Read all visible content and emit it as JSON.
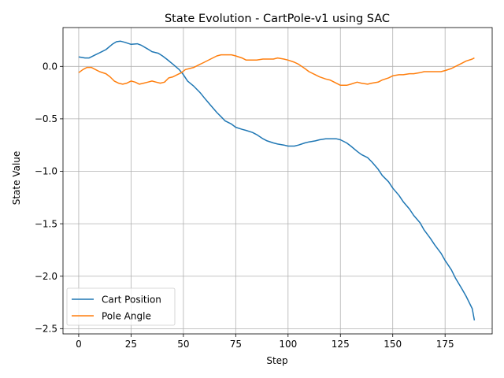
{
  "chart_data": {
    "type": "line",
    "title": "State Evolution - CartPole-v1 using SAC",
    "xlabel": "Step",
    "ylabel": "State Value",
    "xlim": [
      -7.5,
      197.5
    ],
    "ylim": [
      -2.55,
      0.37
    ],
    "xticks": [
      0,
      25,
      50,
      75,
      100,
      125,
      150,
      175
    ],
    "yticks": [
      -2.5,
      -2.0,
      -1.5,
      -1.0,
      -0.5,
      0.0
    ],
    "grid": true,
    "legend": "lower-left",
    "series": [
      {
        "name": "Cart Position",
        "color": "#1f77b4",
        "x": [
          0,
          3,
          5,
          8,
          10,
          13,
          16,
          18,
          20,
          22,
          25,
          28,
          30,
          33,
          35,
          38,
          40,
          42,
          45,
          48,
          50,
          52,
          55,
          58,
          60,
          63,
          66,
          68,
          70,
          73,
          75,
          78,
          80,
          83,
          85,
          88,
          90,
          93,
          95,
          98,
          100,
          103,
          105,
          108,
          110,
          113,
          115,
          118,
          120,
          123,
          125,
          128,
          130,
          133,
          135,
          138,
          140,
          143,
          145,
          148,
          150,
          153,
          155,
          158,
          160,
          163,
          165,
          168,
          170,
          173,
          175,
          178,
          180,
          183,
          185,
          188,
          189
        ],
        "values": [
          0.09,
          0.08,
          0.08,
          0.11,
          0.13,
          0.16,
          0.21,
          0.235,
          0.24,
          0.23,
          0.21,
          0.215,
          0.2,
          0.165,
          0.14,
          0.125,
          0.1,
          0.07,
          0.02,
          -0.03,
          -0.08,
          -0.14,
          -0.19,
          -0.25,
          -0.3,
          -0.37,
          -0.44,
          -0.48,
          -0.52,
          -0.55,
          -0.58,
          -0.6,
          -0.61,
          -0.63,
          -0.65,
          -0.69,
          -0.71,
          -0.73,
          -0.74,
          -0.75,
          -0.76,
          -0.76,
          -0.75,
          -0.73,
          -0.72,
          -0.71,
          -0.7,
          -0.69,
          -0.69,
          -0.69,
          -0.7,
          -0.73,
          -0.76,
          -0.81,
          -0.84,
          -0.87,
          -0.91,
          -0.98,
          -1.04,
          -1.1,
          -1.16,
          -1.23,
          -1.29,
          -1.36,
          -1.42,
          -1.49,
          -1.56,
          -1.64,
          -1.7,
          -1.78,
          -1.85,
          -1.94,
          -2.02,
          -2.12,
          -2.19,
          -2.31,
          -2.42
        ]
      },
      {
        "name": "Pole Angle",
        "color": "#ff7f0e",
        "x": [
          0,
          2,
          4,
          6,
          8,
          10,
          13,
          15,
          17,
          19,
          21,
          23,
          25,
          27,
          29,
          31,
          33,
          35,
          37,
          39,
          41,
          43,
          45,
          47,
          49,
          51,
          53,
          55,
          58,
          60,
          63,
          66,
          68,
          70,
          73,
          75,
          78,
          80,
          83,
          85,
          88,
          90,
          93,
          95,
          98,
          100,
          103,
          105,
          108,
          110,
          113,
          115,
          118,
          120,
          123,
          125,
          128,
          130,
          133,
          135,
          138,
          140,
          143,
          145,
          148,
          150,
          153,
          155,
          158,
          160,
          163,
          165,
          168,
          170,
          173,
          175,
          178,
          180,
          183,
          185,
          188,
          189
        ],
        "values": [
          -0.06,
          -0.03,
          -0.01,
          -0.01,
          -0.03,
          -0.05,
          -0.07,
          -0.1,
          -0.14,
          -0.16,
          -0.17,
          -0.16,
          -0.14,
          -0.15,
          -0.17,
          -0.16,
          -0.15,
          -0.14,
          -0.15,
          -0.16,
          -0.15,
          -0.11,
          -0.1,
          -0.08,
          -0.06,
          -0.03,
          -0.02,
          -0.01,
          0.02,
          0.04,
          0.07,
          0.1,
          0.11,
          0.11,
          0.11,
          0.1,
          0.08,
          0.06,
          0.06,
          0.06,
          0.07,
          0.07,
          0.07,
          0.08,
          0.07,
          0.06,
          0.04,
          0.02,
          -0.02,
          -0.05,
          -0.08,
          -0.1,
          -0.12,
          -0.13,
          -0.16,
          -0.18,
          -0.18,
          -0.17,
          -0.15,
          -0.16,
          -0.17,
          -0.16,
          -0.15,
          -0.13,
          -0.11,
          -0.09,
          -0.08,
          -0.08,
          -0.07,
          -0.07,
          -0.06,
          -0.05,
          -0.05,
          -0.05,
          -0.05,
          -0.04,
          -0.02,
          0.0,
          0.03,
          0.05,
          0.07,
          0.08
        ]
      }
    ]
  }
}
